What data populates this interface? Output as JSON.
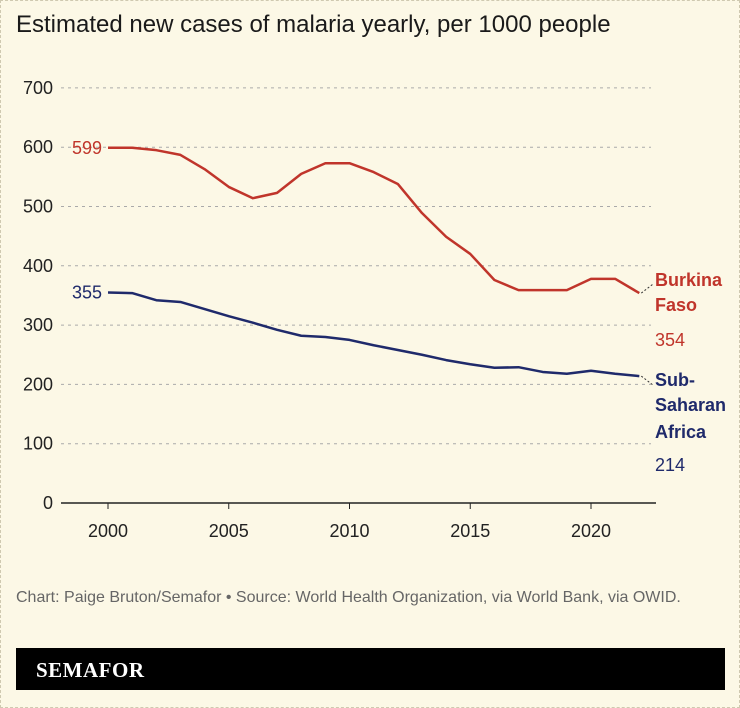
{
  "chart_data": {
    "type": "line",
    "title": "Estimated new cases of malaria yearly, per 1000 people",
    "xlabel": "",
    "ylabel": "",
    "x": [
      2000,
      2001,
      2002,
      2003,
      2004,
      2005,
      2006,
      2007,
      2008,
      2009,
      2010,
      2011,
      2012,
      2013,
      2014,
      2015,
      2016,
      2017,
      2018,
      2019,
      2020,
      2021,
      2022
    ],
    "xticks": [
      "2000",
      "2005",
      "2010",
      "2015",
      "2020"
    ],
    "yticks": [
      "0",
      "100",
      "200",
      "300",
      "400",
      "500",
      "600",
      "700"
    ],
    "ylim": [
      0,
      700
    ],
    "xlim": [
      1998,
      2023
    ],
    "grid": true,
    "series": [
      {
        "name": "Burkina Faso",
        "label_lines": [
          "Burkina",
          "Faso"
        ],
        "color": "#c0352b",
        "start_label": "599",
        "end_label": "354",
        "values": [
          599,
          599,
          595,
          587,
          563,
          533,
          514,
          523,
          555,
          573,
          573,
          558,
          538,
          489,
          449,
          420,
          376,
          359,
          359,
          359,
          378,
          378,
          354
        ]
      },
      {
        "name": "Sub-Saharan Africa",
        "label_lines": [
          "Sub-",
          "Saharan",
          "Africa"
        ],
        "color": "#1f2a6b",
        "start_label": "355",
        "end_label": "214",
        "values": [
          355,
          354,
          342,
          339,
          327,
          315,
          304,
          292,
          282,
          280,
          275,
          266,
          258,
          250,
          241,
          234,
          228,
          229,
          221,
          218,
          223,
          218,
          214
        ]
      }
    ]
  },
  "footer": "Chart: Paige Bruton/Semafor • Source: World Health Organization, via World Bank, via OWID.",
  "brand": "SEMAFOR"
}
